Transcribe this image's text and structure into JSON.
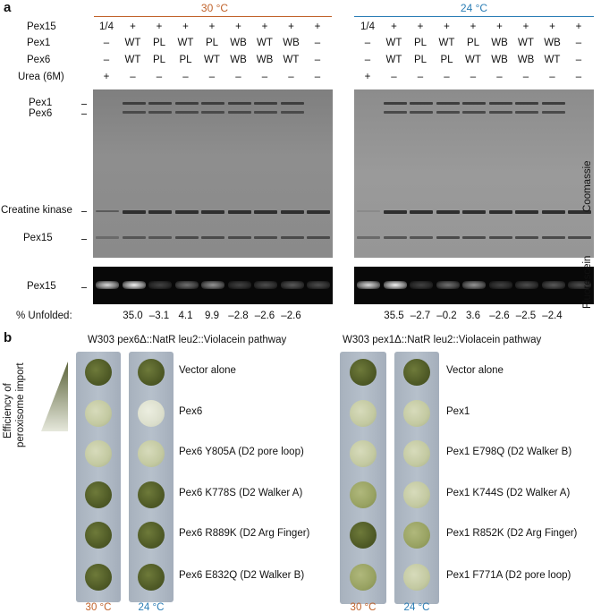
{
  "panel_a": {
    "letter": "a",
    "temp_left": "30 °C",
    "temp_right": "24 °C",
    "row_labels": [
      "Pex15",
      "Pex1",
      "Pex6",
      "Urea (6M)"
    ],
    "left_columns": [
      [
        "1/4",
        "–",
        "–",
        "+"
      ],
      [
        "+",
        "WT",
        "WT",
        "–"
      ],
      [
        "+",
        "PL",
        "PL",
        "–"
      ],
      [
        "+",
        "WT",
        "PL",
        "–"
      ],
      [
        "+",
        "PL",
        "WT",
        "–"
      ],
      [
        "+",
        "WB",
        "WB",
        "–"
      ],
      [
        "+",
        "WT",
        "WB",
        "–"
      ],
      [
        "+",
        "WB",
        "WT",
        "–"
      ],
      [
        "+",
        "–",
        "–",
        "–"
      ]
    ],
    "right_columns": [
      [
        "1/4",
        "–",
        "–",
        "+"
      ],
      [
        "+",
        "WT",
        "WT",
        "–"
      ],
      [
        "+",
        "PL",
        "PL",
        "–"
      ],
      [
        "+",
        "WT",
        "PL",
        "–"
      ],
      [
        "+",
        "PL",
        "WT",
        "–"
      ],
      [
        "+",
        "WB",
        "WB",
        "–"
      ],
      [
        "+",
        "WT",
        "WB",
        "–"
      ],
      [
        "+",
        "WB",
        "WT",
        "–"
      ],
      [
        "+",
        "–",
        "–",
        "–"
      ]
    ],
    "band_labels": {
      "pex1": "Pex1",
      "pex6": "Pex6",
      "creatine": "Creatine kinase",
      "pex15": "Pex15",
      "pex15_fluor": "Pex15"
    },
    "stain_coomassie": "Coomassie",
    "stain_fluorescein": "Fluorescein",
    "unfolded_label": "% Unfolded:",
    "unfolded_left": [
      "35.0",
      "–3.1",
      "4.1",
      "9.9",
      "–2.8",
      "–2.6",
      "–2.6"
    ],
    "unfolded_right": [
      "35.5",
      "–2.7",
      "–0.2",
      "3.6",
      "–2.6",
      "–2.5",
      "–2.4"
    ]
  },
  "panel_b": {
    "letter": "b",
    "y_label_1": "Efficiency of",
    "y_label_2": "peroxisome import",
    "strain_left": "W303 pex6Δ::NatR leu2::Violacein pathway",
    "strain_right": "W303 pex1Δ::NatR leu2::Violacein pathway",
    "left_constructs": [
      "Vector alone",
      "Pex6",
      "Pex6 Y805A (D2 pore loop)",
      "Pex6 K778S (D2 Walker A)",
      "Pex6 R889K (D2 Arg Finger)",
      "Pex6 E832Q (D2 Walker B)"
    ],
    "right_constructs": [
      "Vector alone",
      "Pex1",
      "Pex1 E798Q (D2 Walker B)",
      "Pex1 K744S (D2 Walker A)",
      "Pex1 R852K (D2 Arg Finger)",
      "Pex1 F771A (D2 pore loop)"
    ],
    "plate_temp_30": "30 °C",
    "plate_temp_24": "24 °C"
  }
}
